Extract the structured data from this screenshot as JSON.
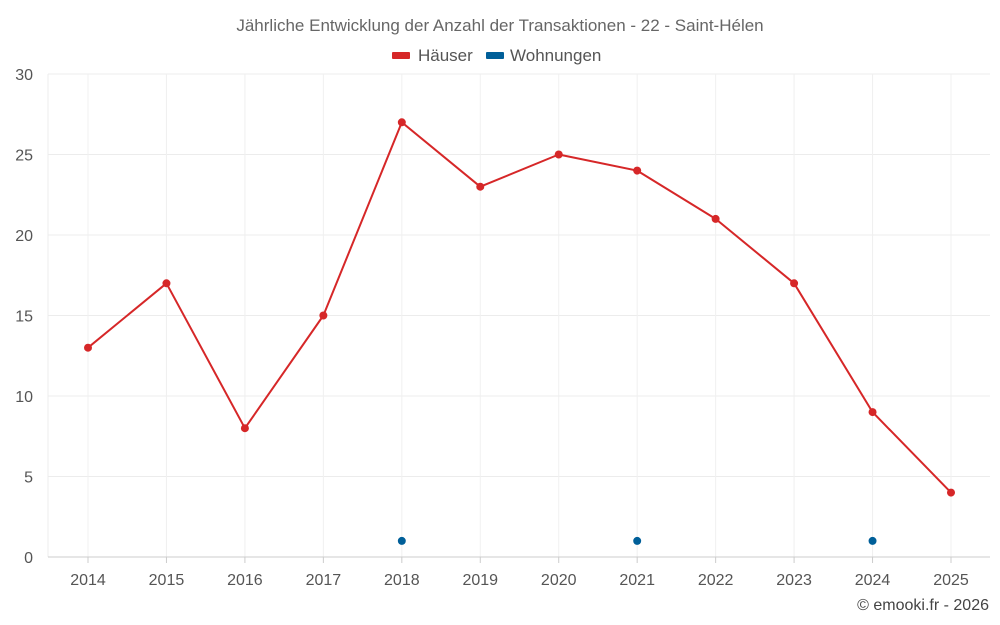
{
  "chart_data": {
    "type": "line",
    "title": "Jährliche Entwicklung der Anzahl der Transaktionen - 22 - Saint-Hélen",
    "categories": [
      "2014",
      "2015",
      "2016",
      "2017",
      "2018",
      "2019",
      "2020",
      "2021",
      "2022",
      "2023",
      "2024",
      "2025"
    ],
    "series": [
      {
        "name": "Häuser",
        "color": "#d62728",
        "values": [
          13,
          17,
          8,
          15,
          27,
          23,
          25,
          24,
          21,
          17,
          9,
          4
        ]
      },
      {
        "name": "Wohnungen",
        "color": "#005f99",
        "values": [
          null,
          null,
          null,
          null,
          1,
          null,
          null,
          1,
          null,
          null,
          1,
          null
        ]
      }
    ],
    "ylim": [
      0,
      30
    ],
    "yticks": [
      0,
      5,
      10,
      15,
      20,
      25,
      30
    ],
    "xlabel": "",
    "ylabel": "",
    "grid": true,
    "legend_position": "top-center"
  },
  "footer": {
    "credit": "© emooki.fr - 2026"
  }
}
